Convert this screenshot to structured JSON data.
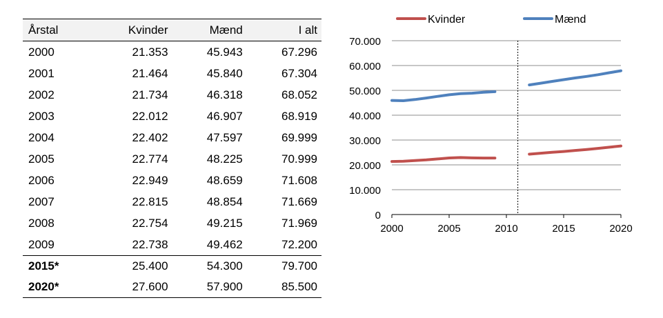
{
  "table": {
    "headers": [
      "Årstal",
      "Kvinder",
      "Mænd",
      "I alt"
    ],
    "rows": [
      [
        "2000",
        "21.353",
        "45.943",
        "67.296"
      ],
      [
        "2001",
        "21.464",
        "45.840",
        "67.304"
      ],
      [
        "2002",
        "21.734",
        "46.318",
        "68.052"
      ],
      [
        "2003",
        "22.012",
        "46.907",
        "68.919"
      ],
      [
        "2004",
        "22.402",
        "47.597",
        "69.999"
      ],
      [
        "2005",
        "22.774",
        "48.225",
        "70.999"
      ],
      [
        "2006",
        "22.949",
        "48.659",
        "71.608"
      ],
      [
        "2007",
        "22.815",
        "48.854",
        "71.669"
      ],
      [
        "2008",
        "22.754",
        "49.215",
        "71.969"
      ],
      [
        "2009",
        "22.738",
        "49.462",
        "72.200"
      ]
    ],
    "forecast_rows": [
      [
        "2015*",
        "25.400",
        "54.300",
        "79.700"
      ],
      [
        "2020*",
        "27.600",
        "57.900",
        "85.500"
      ]
    ]
  },
  "chart_data": {
    "type": "line",
    "xlim": [
      2000,
      2020
    ],
    "ylim": [
      0,
      70000
    ],
    "x_ticks": [
      2000,
      2005,
      2010,
      2015,
      2020
    ],
    "y_ticks": [
      0,
      10000,
      20000,
      30000,
      40000,
      50000,
      60000,
      70000
    ],
    "x_tick_labels": [
      "2000",
      "2005",
      "2010",
      "2015",
      "2020"
    ],
    "y_tick_labels": [
      "0",
      "10.000",
      "20.000",
      "30.000",
      "40.000",
      "50.000",
      "60.000",
      "70.000"
    ],
    "grid": "horizontal",
    "legend_position": "top",
    "divider_x": 2011,
    "series": [
      {
        "name": "Kvinder",
        "color": "#c0504d",
        "segments": [
          [
            [
              2000,
              21353
            ],
            [
              2001,
              21464
            ],
            [
              2002,
              21734
            ],
            [
              2003,
              22012
            ],
            [
              2004,
              22402
            ],
            [
              2005,
              22774
            ],
            [
              2006,
              22949
            ],
            [
              2007,
              22815
            ],
            [
              2008,
              22754
            ],
            [
              2009,
              22738
            ]
          ],
          [
            [
              2012,
              24300
            ],
            [
              2013,
              24700
            ],
            [
              2014,
              25050
            ],
            [
              2015,
              25400
            ],
            [
              2016,
              25800
            ],
            [
              2017,
              26200
            ],
            [
              2018,
              26650
            ],
            [
              2019,
              27100
            ],
            [
              2020,
              27600
            ]
          ]
        ]
      },
      {
        "name": "Mænd",
        "color": "#4f81bd",
        "segments": [
          [
            [
              2000,
              45943
            ],
            [
              2001,
              45840
            ],
            [
              2002,
              46318
            ],
            [
              2003,
              46907
            ],
            [
              2004,
              47597
            ],
            [
              2005,
              48225
            ],
            [
              2006,
              48659
            ],
            [
              2007,
              48854
            ],
            [
              2008,
              49215
            ],
            [
              2009,
              49462
            ]
          ],
          [
            [
              2012,
              52200
            ],
            [
              2013,
              52900
            ],
            [
              2014,
              53600
            ],
            [
              2015,
              54300
            ],
            [
              2016,
              55000
            ],
            [
              2017,
              55600
            ],
            [
              2018,
              56300
            ],
            [
              2019,
              57100
            ],
            [
              2020,
              57900
            ]
          ]
        ]
      }
    ]
  }
}
